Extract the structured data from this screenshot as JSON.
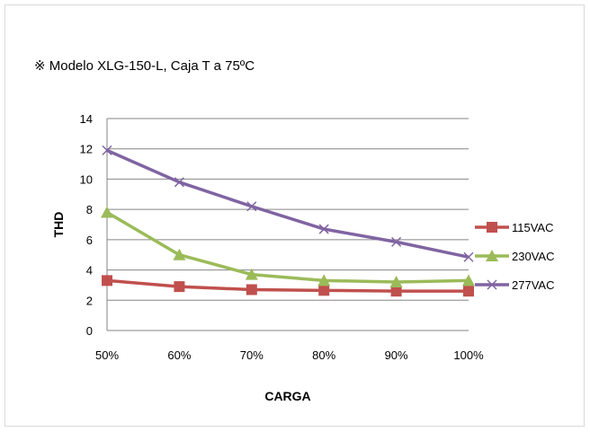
{
  "chart_data": {
    "type": "line",
    "title": "※ Modelo XLG-150-L, Caja T a 75ºC",
    "xlabel": "CARGA",
    "ylabel": "THD",
    "categories": [
      "50%",
      "60%",
      "70%",
      "80%",
      "90%",
      "100%"
    ],
    "ylim": [
      0,
      14
    ],
    "yticks": [
      0,
      2,
      4,
      6,
      8,
      10,
      12,
      14
    ],
    "grid": true,
    "legend_position": "right",
    "series": [
      {
        "name": "115VAC",
        "color": "#c0504d",
        "marker": "square",
        "values": [
          3.3,
          2.9,
          2.7,
          2.65,
          2.6,
          2.6
        ]
      },
      {
        "name": "230VAC",
        "color": "#9bbb59",
        "marker": "triangle",
        "values": [
          7.8,
          5.0,
          3.7,
          3.3,
          3.2,
          3.3
        ]
      },
      {
        "name": "277VAC",
        "color": "#8064a2",
        "marker": "x",
        "values": [
          11.9,
          9.8,
          8.2,
          6.7,
          5.85,
          4.85
        ]
      }
    ]
  }
}
